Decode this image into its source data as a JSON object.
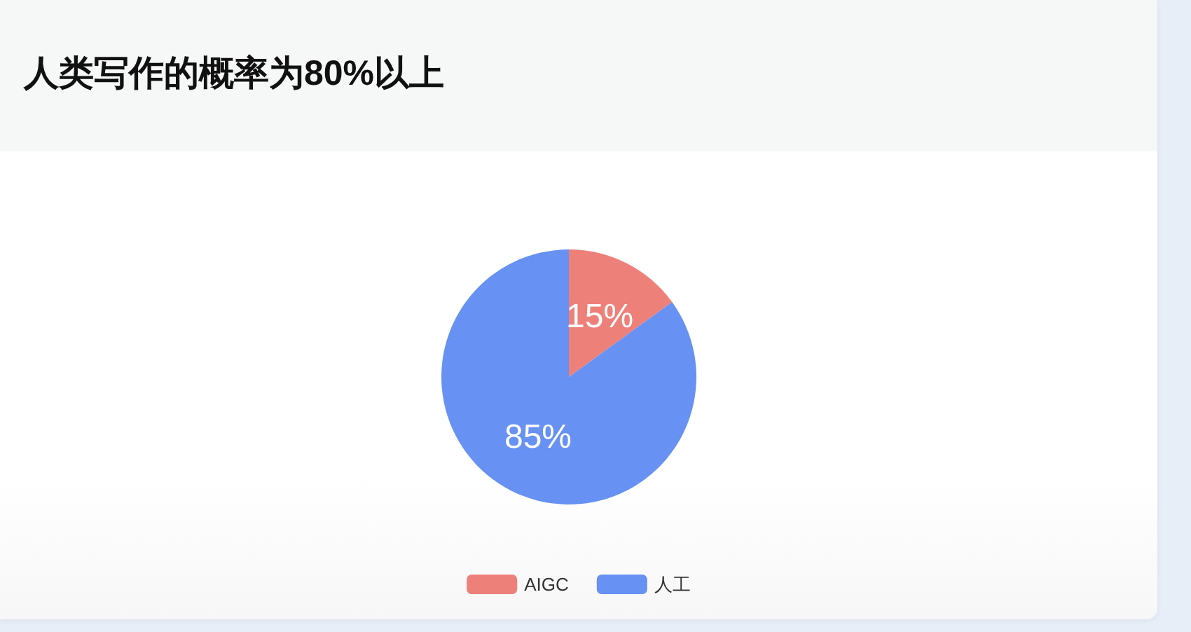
{
  "chart_data": {
    "type": "pie",
    "title": "人类写作的概率为80%以上",
    "categories": [
      "AIGC",
      "人工"
    ],
    "values": [
      15,
      85
    ],
    "colors": [
      "#ee807a",
      "#6791f2"
    ],
    "value_labels": [
      "15%",
      "85%"
    ],
    "legend": "bottom"
  }
}
